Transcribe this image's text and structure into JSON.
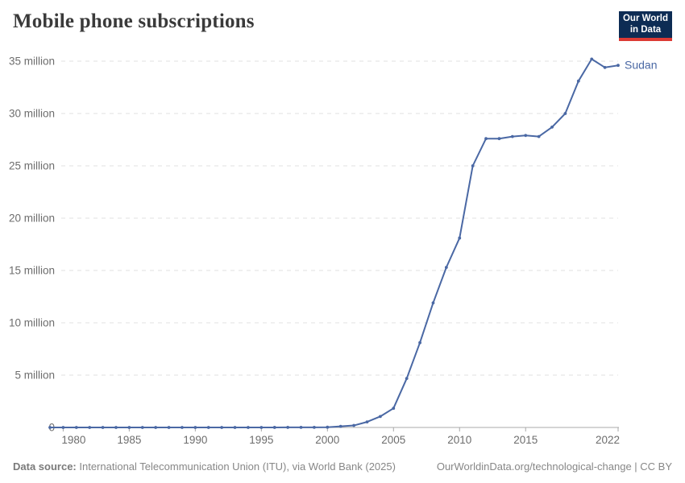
{
  "header": {
    "title": "Mobile phone subscriptions"
  },
  "logo": {
    "line1": "Our World",
    "line2": "in Data"
  },
  "footer": {
    "source_label": "Data source:",
    "source_value": " International Telecommunication Union (ITU), via World Bank (2025)",
    "link": "OurWorldinData.org/technological-change | CC BY"
  },
  "colors": {
    "line": "#4a68a4",
    "grid": "#e2e2e2",
    "axis": "#a8a8a8",
    "tick_text": "#6d6d6d",
    "title_text": "#3a3a3a",
    "footer_text": "#878787",
    "logo_bg": "#0d2c54",
    "logo_red": "#dc3a34"
  },
  "chart_data": {
    "type": "line",
    "title": "Mobile phone subscriptions",
    "unit": "million",
    "grid": "horizontal-dashed",
    "legend_position": "end-of-line-label",
    "xlim": [
      1979,
      2022
    ],
    "ylim": [
      0,
      35.2
    ],
    "x_ticks": [
      1980,
      1985,
      1990,
      1995,
      2000,
      2005,
      2010,
      2015,
      2022
    ],
    "y_ticks": [
      {
        "value": 0,
        "label": "0"
      },
      {
        "value": 5,
        "label": "5 million"
      },
      {
        "value": 10,
        "label": "10 million"
      },
      {
        "value": 15,
        "label": "15 million"
      },
      {
        "value": 20,
        "label": "20 million"
      },
      {
        "value": 25,
        "label": "25 million"
      },
      {
        "value": 30,
        "label": "30 million"
      },
      {
        "value": 35,
        "label": "35 million"
      }
    ],
    "series": [
      {
        "name": "Sudan",
        "color": "#4a68a4",
        "x": [
          1979,
          1980,
          1981,
          1982,
          1983,
          1984,
          1985,
          1986,
          1987,
          1988,
          1989,
          1990,
          1991,
          1992,
          1993,
          1994,
          1995,
          1996,
          1997,
          1998,
          1999,
          2000,
          2001,
          2002,
          2003,
          2004,
          2005,
          2006,
          2007,
          2008,
          2009,
          2010,
          2011,
          2012,
          2013,
          2014,
          2015,
          2016,
          2017,
          2018,
          2019,
          2020,
          2021,
          2022
        ],
        "values": [
          0,
          0,
          0,
          0,
          0,
          0,
          0,
          0,
          0,
          0,
          0,
          0,
          0,
          0,
          0,
          0,
          0,
          0.003,
          0.006,
          0.009,
          0.012,
          0.023,
          0.105,
          0.19,
          0.53,
          1.05,
          1.83,
          4.68,
          8.1,
          11.9,
          15.3,
          18.1,
          25.0,
          27.6,
          27.6,
          27.8,
          27.9,
          27.8,
          28.7,
          30.0,
          33.1,
          35.2,
          34.4,
          34.6
        ]
      }
    ]
  }
}
